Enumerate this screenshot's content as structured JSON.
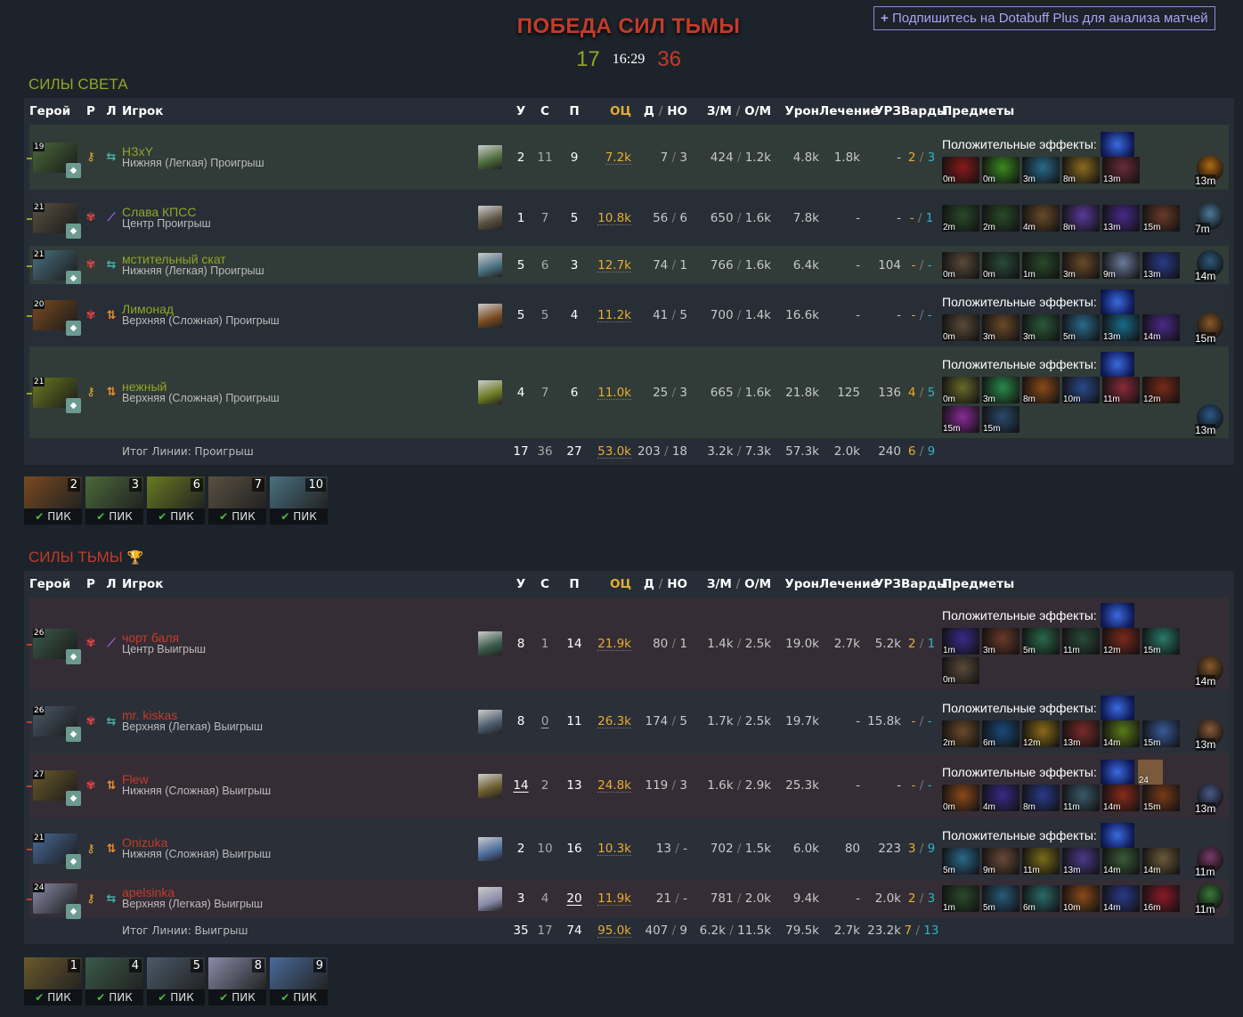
{
  "header": {
    "title": "ПОБЕДА СИЛ ТЬМЫ",
    "radiant_score": "17",
    "duration": "16:29",
    "dire_score": "36",
    "plus_button": "Подпишитесь на Dotabuff Plus для анализа матчей",
    "plus_icon": "+"
  },
  "colors": {
    "radiant": "#92a525",
    "dire": "#c23c2a",
    "net_worth": "#e7ae2e",
    "observer": "#e7ae2e",
    "sentry": "#2fb2c8"
  },
  "columns": {
    "hero": "Герой",
    "role": "Р",
    "lane": "Л",
    "player": "Игрок",
    "kills": "У",
    "deaths": "С",
    "assists": "П",
    "nw": "ОЦ",
    "lh": "Д",
    "dn": "НО",
    "gpm": "З/М",
    "xpm": "О/М",
    "dmg": "Урон",
    "heal": "Лечение",
    "bld": "УРЗ",
    "wards": "Варды",
    "items": "Предметы"
  },
  "buff_label": "Положительные эффекты:",
  "pick_label": "ПИК",
  "radiant": {
    "title": "СИЛЫ СВЕТА",
    "total_label": "Итог Линии: Проигрыш",
    "totals": {
      "k": "17",
      "d": "36",
      "a": "27",
      "nw": "53.0k",
      "lh": "203",
      "dn": "18",
      "gpm": "3.2k",
      "xpm": "7.3k",
      "dmg": "57.3k",
      "heal": "2.0k",
      "bld": "240",
      "obs": "6",
      "sen": "9"
    },
    "players": [
      {
        "level": "19",
        "name": "НЗxY",
        "lane_text": "Нижняя (Легкая) Проигрыш",
        "role": "core",
        "lane": "safe",
        "k": "2",
        "d": "11",
        "a": "9",
        "nw": "7.2k",
        "lh": "7",
        "dn": "3",
        "gpm": "424",
        "xpm": "1.2k",
        "dmg": "4.8k",
        "heal": "1.8k",
        "bld": "-",
        "obs": "2",
        "sen": "3",
        "buff": true,
        "hero_color": "#4a6a3a",
        "items": [
          {
            "t": "0m",
            "c": "#8a1a1a"
          },
          {
            "t": "0m",
            "c": "#3a8a20"
          },
          {
            "t": "3m",
            "c": "#2a6a8a"
          },
          {
            "t": "8m",
            "c": "#8a6a20"
          },
          {
            "t": "13m",
            "c": "#6a2a3a"
          }
        ],
        "neutral": {
          "t": "13m",
          "c": "#b06a10"
        }
      },
      {
        "level": "21",
        "name": "Слава КПСС",
        "lane_text": "Центр Проигрыш",
        "role": "support",
        "lane": "mid",
        "k": "1",
        "d": "7",
        "a": "5",
        "nw": "10.8k",
        "lh": "56",
        "dn": "6",
        "gpm": "650",
        "xpm": "1.6k",
        "dmg": "7.8k",
        "heal": "-",
        "bld": "-",
        "obs": "-",
        "sen": "1",
        "buff": false,
        "hero_color": "#5a5040",
        "items": [
          {
            "t": "2m",
            "c": "#2a4a2a"
          },
          {
            "t": "2m",
            "c": "#2a4a2a"
          },
          {
            "t": "4m",
            "c": "#6a4a2a"
          },
          {
            "t": "8m",
            "c": "#5a3a9a"
          },
          {
            "t": "13m",
            "c": "#4a2a8a"
          },
          {
            "t": "15m",
            "c": "#6a3a2a"
          }
        ],
        "neutral": {
          "t": "7m",
          "c": "#4a7a9a"
        }
      },
      {
        "level": "21",
        "name": "мстительный скат",
        "lane_text": "Нижняя (Легкая) Проигрыш",
        "role": "support",
        "lane": "safe",
        "k": "5",
        "d": "6",
        "a": "3",
        "nw": "12.7k",
        "lh": "74",
        "dn": "1",
        "gpm": "766",
        "xpm": "1.6k",
        "dmg": "6.4k",
        "heal": "-",
        "bld": "104",
        "obs": "-",
        "sen": "-",
        "buff": false,
        "hero_color": "#4a7080",
        "items": [
          {
            "t": "0m",
            "c": "#5a4a3a"
          },
          {
            "t": "0m",
            "c": "#2a4a3a"
          },
          {
            "t": "1m",
            "c": "#2a4a2a"
          },
          {
            "t": "3m",
            "c": "#6a4a2a"
          },
          {
            "t": "9m",
            "c": "#6a7a9a"
          },
          {
            "t": "13m",
            "c": "#2a3a8a"
          }
        ],
        "neutral": {
          "t": "14m",
          "c": "#2a5a7a"
        }
      },
      {
        "level": "20",
        "name": "Лимонад",
        "lane_text": "Верхняя (Сложная) Проигрыш",
        "role": "support",
        "lane": "off",
        "k": "5",
        "d": "5",
        "a": "4",
        "nw": "11.2k",
        "lh": "41",
        "dn": "5",
        "gpm": "700",
        "xpm": "1.4k",
        "dmg": "16.6k",
        "heal": "-",
        "bld": "-",
        "obs": "-",
        "sen": "-",
        "buff": true,
        "hero_color": "#7a4a20",
        "items": [
          {
            "t": "0m",
            "c": "#5a4a3a"
          },
          {
            "t": "3m",
            "c": "#6a4a2a"
          },
          {
            "t": "3m",
            "c": "#2a5a3a"
          },
          {
            "t": "5m",
            "c": "#2a6a8a"
          },
          {
            "t": "13m",
            "c": "#1a6a8a"
          },
          {
            "t": "14m",
            "c": "#4a2a8a"
          }
        ],
        "neutral": {
          "t": "15m",
          "c": "#8a5a2a"
        }
      },
      {
        "level": "21",
        "name": "нежный",
        "lane_text": "Верхняя (Сложная) Проигрыш",
        "role": "core",
        "lane": "off",
        "k": "4",
        "d": "7",
        "a": "6",
        "nw": "11.0k",
        "lh": "25",
        "dn": "3",
        "gpm": "665",
        "xpm": "1.6k",
        "dmg": "21.8k",
        "heal": "125",
        "bld": "136",
        "obs": "4",
        "sen": "5",
        "buff": true,
        "hero_color": "#6a7a20",
        "items": [
          {
            "t": "0m",
            "c": "#6a6a2a"
          },
          {
            "t": "3m",
            "c": "#2a8a4a"
          },
          {
            "t": "8m",
            "c": "#8a4a1a"
          },
          {
            "t": "10m",
            "c": "#2a4a8a"
          },
          {
            "t": "11m",
            "c": "#8a2a3a"
          },
          {
            "t": "12m",
            "c": "#7a2a1a"
          },
          {
            "t": "15m",
            "c": "#8a2a9a"
          },
          {
            "t": "15m",
            "c": "#2a4a6a"
          }
        ],
        "neutral": {
          "t": "13m",
          "c": "#2a5a8a"
        }
      }
    ],
    "picks": [
      {
        "n": "2",
        "c": "#7a4a20"
      },
      {
        "n": "3",
        "c": "#4a6a3a"
      },
      {
        "n": "6",
        "c": "#6a7a20"
      },
      {
        "n": "7",
        "c": "#5a5040"
      },
      {
        "n": "10",
        "c": "#4a7080"
      }
    ]
  },
  "dire": {
    "title": "СИЛЫ ТЬМЫ",
    "trophy_icon": "🏆",
    "total_label": "Итог Линии: Выигрыш",
    "totals": {
      "k": "35",
      "d": "17",
      "a": "74",
      "nw": "95.0k",
      "lh": "407",
      "dn": "9",
      "gpm": "6.2k",
      "xpm": "11.5k",
      "dmg": "79.5k",
      "heal": "2.7k",
      "bld": "23.2k",
      "obs": "7",
      "sen": "13"
    },
    "players": [
      {
        "level": "26",
        "name": "чорт баля",
        "lane_text": "Центр Выигрыш",
        "role": "support",
        "lane": "mid",
        "k": "8",
        "d": "1",
        "a": "14",
        "nw": "21.9k",
        "lh": "80",
        "dn": "1",
        "gpm": "1.4k",
        "xpm": "2.5k",
        "dmg": "19.0k",
        "heal": "2.7k",
        "bld": "5.2k",
        "obs": "2",
        "sen": "1",
        "buff": true,
        "hero_color": "#3a5a4a",
        "items": [
          {
            "t": "1m",
            "c": "#3a2a8a"
          },
          {
            "t": "3m",
            "c": "#6a3a2a"
          },
          {
            "t": "5m",
            "c": "#2a6a4a"
          },
          {
            "t": "11m",
            "c": "#2a4a3a"
          },
          {
            "t": "12m",
            "c": "#7a2a1a"
          },
          {
            "t": "15m",
            "c": "#2a7a6a"
          },
          {
            "t": "0m",
            "c": "#5a4a3a"
          }
        ],
        "neutral": {
          "t": "14m",
          "c": "#8a5a2a"
        }
      },
      {
        "level": "26",
        "name": "mr. kiskas",
        "lane_text": "Верхняя (Легкая) Выигрыш",
        "role": "support",
        "lane": "safe",
        "k": "8",
        "d": "0",
        "a": "11",
        "nw": "26.3k",
        "lh": "174",
        "dn": "5",
        "gpm": "1.7k",
        "xpm": "2.5k",
        "dmg": "19.7k",
        "heal": "-",
        "bld": "15.8k",
        "obs": "-",
        "sen": "-",
        "buff": true,
        "hero_color": "#4a5a6a",
        "items": [
          {
            "t": "2m",
            "c": "#6a4a2a"
          },
          {
            "t": "6m",
            "c": "#1a4a7a"
          },
          {
            "t": "12m",
            "c": "#8a6a1a"
          },
          {
            "t": "13m",
            "c": "#7a2a2a"
          },
          {
            "t": "14m",
            "c": "#5a7a1a"
          },
          {
            "t": "15m",
            "c": "#3a5a9a"
          }
        ],
        "neutral": {
          "t": "13m",
          "c": "#8a5a3a"
        }
      },
      {
        "level": "27",
        "name": "Flew",
        "lane_text": "Нижняя (Сложная) Выигрыш",
        "role": "support",
        "lane": "off",
        "k": "14",
        "d": "2",
        "a": "13",
        "nw": "24.8k",
        "lh": "119",
        "dn": "3",
        "gpm": "1.6k",
        "xpm": "2.9k",
        "dmg": "25.3k",
        "heal": "-",
        "bld": "-",
        "obs": "-",
        "sen": "-",
        "buff": true,
        "buff_extra": "24",
        "hero_color": "#6a5a2a",
        "items": [
          {
            "t": "0m",
            "c": "#8a4a1a"
          },
          {
            "t": "4m",
            "c": "#3a2a8a"
          },
          {
            "t": "8m",
            "c": "#2a3a8a"
          },
          {
            "t": "11m",
            "c": "#3a5a6a"
          },
          {
            "t": "14m",
            "c": "#8a2a1a"
          },
          {
            "t": "15m",
            "c": "#7a3a1a"
          }
        ],
        "neutral": {
          "t": "13m",
          "c": "#4a5a8a"
        }
      },
      {
        "level": "21",
        "name": "Onizuka",
        "lane_text": "Нижняя (Сложная) Выигрыш",
        "role": "core",
        "lane": "off",
        "k": "2",
        "d": "10",
        "a": "16",
        "nw": "10.3k",
        "lh": "13",
        "dn": "-",
        "gpm": "702",
        "xpm": "1.5k",
        "dmg": "6.0k",
        "heal": "80",
        "bld": "223",
        "obs": "3",
        "sen": "9",
        "buff": true,
        "hero_color": "#4a6a9a",
        "items": [
          {
            "t": "5m",
            "c": "#2a6a8a"
          },
          {
            "t": "9m",
            "c": "#6a4a3a"
          },
          {
            "t": "11m",
            "c": "#7a6a1a"
          },
          {
            "t": "13m",
            "c": "#4a3a8a"
          },
          {
            "t": "14m",
            "c": "#3a5a3a"
          },
          {
            "t": "14m",
            "c": "#6a5a3a"
          }
        ],
        "neutral": {
          "t": "11m",
          "c": "#7a3a6a"
        }
      },
      {
        "level": "24",
        "name": "apelsinka",
        "lane_text": "Верхняя (Легкая) Выигрыш",
        "role": "core",
        "lane": "safe",
        "k": "3",
        "d": "4",
        "a": "20",
        "nw": "11.9k",
        "lh": "21",
        "dn": "-",
        "gpm": "781",
        "xpm": "2.0k",
        "dmg": "9.4k",
        "heal": "-",
        "bld": "2.0k",
        "obs": "2",
        "sen": "3",
        "buff": false,
        "hero_color": "#8a8aaa",
        "items": [
          {
            "t": "1m",
            "c": "#2a4a2a"
          },
          {
            "t": "5m",
            "c": "#2a5a7a"
          },
          {
            "t": "6m",
            "c": "#2a6a6a"
          },
          {
            "t": "10m",
            "c": "#8a4a1a"
          },
          {
            "t": "14m",
            "c": "#2a3a8a"
          },
          {
            "t": "16m",
            "c": "#8a1a2a"
          }
        ],
        "neutral": {
          "t": "11m",
          "c": "#3a7a3a"
        }
      }
    ],
    "picks": [
      {
        "n": "1",
        "c": "#6a5a2a"
      },
      {
        "n": "4",
        "c": "#3a5a4a"
      },
      {
        "n": "5",
        "c": "#4a5a6a"
      },
      {
        "n": "8",
        "c": "#8a8aaa"
      },
      {
        "n": "9",
        "c": "#4a6a9a"
      }
    ]
  }
}
